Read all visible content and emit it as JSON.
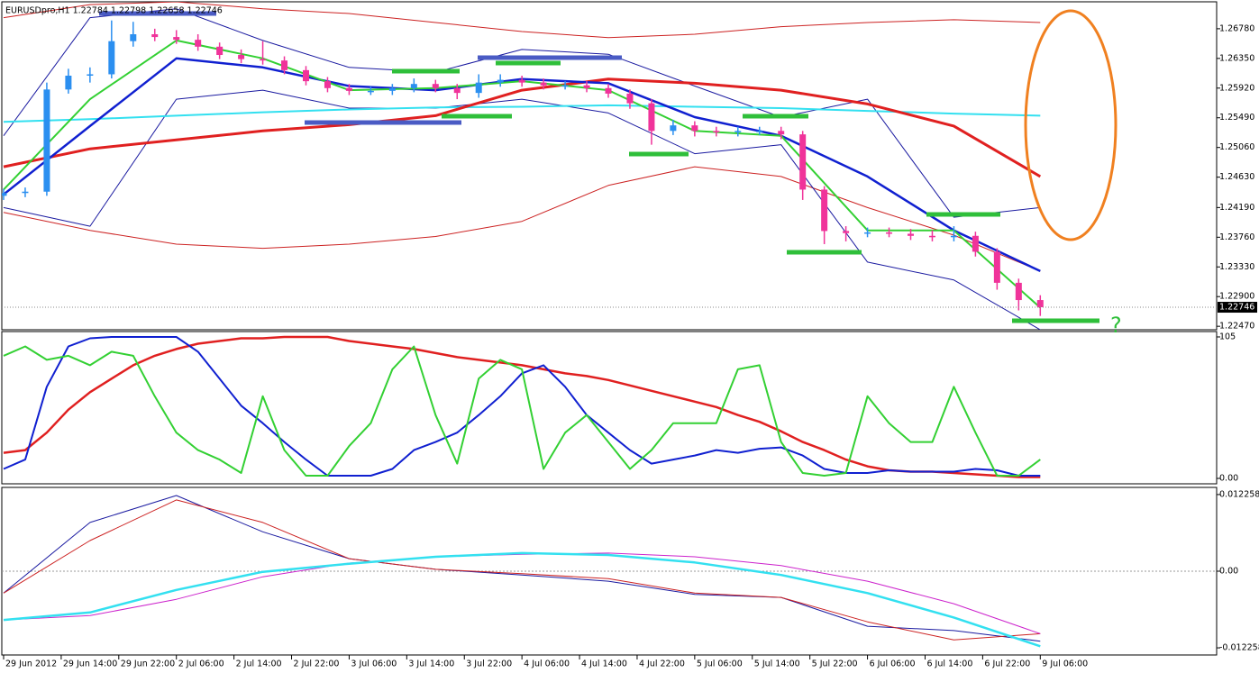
{
  "chart_data": [
    {
      "type": "candlestick",
      "title": "EURUSDpro,H1  1.22784 1.22798 1.22658 1.22746",
      "x": [
        0,
        3,
        6,
        9,
        12,
        15,
        18,
        21,
        24,
        27,
        30,
        33,
        36,
        39,
        42,
        45,
        48,
        51,
        54,
        57,
        60,
        63,
        66,
        69,
        72,
        75,
        78,
        81,
        84,
        87,
        90,
        93,
        96,
        99,
        102,
        105,
        108,
        111,
        114,
        117,
        120,
        123,
        126,
        129,
        132,
        135,
        138,
        141,
        144
      ],
      "open": [
        1.2436,
        1.244,
        1.2442,
        1.259,
        1.261,
        1.2612,
        1.266,
        1.267,
        1.2666,
        1.2662,
        1.2652,
        1.264,
        1.2634,
        1.2632,
        1.2618,
        1.2602,
        1.2592,
        1.2588,
        1.2588,
        1.2592,
        1.2598,
        1.2592,
        1.2585,
        1.26,
        1.2604,
        1.26,
        1.2596,
        1.2596,
        1.2592,
        1.2584,
        1.257,
        1.253,
        1.2538,
        1.253,
        1.2528,
        1.253,
        1.253,
        1.2525,
        1.2445,
        1.2385,
        1.2382,
        1.2383,
        1.2381,
        1.2378,
        1.2376,
        1.2378,
        1.2355,
        1.231,
        1.2285
      ],
      "high": [
        1.2446,
        1.2448,
        1.26,
        1.262,
        1.2622,
        1.269,
        1.2688,
        1.2678,
        1.2676,
        1.267,
        1.2658,
        1.2648,
        1.266,
        1.2638,
        1.2624,
        1.2608,
        1.2598,
        1.2594,
        1.2598,
        1.2606,
        1.2604,
        1.2598,
        1.2612,
        1.2612,
        1.261,
        1.2606,
        1.2602,
        1.2602,
        1.2598,
        1.259,
        1.2576,
        1.2546,
        1.2544,
        1.2536,
        1.2536,
        1.2536,
        1.2536,
        1.253,
        1.245,
        1.2392,
        1.239,
        1.239,
        1.2388,
        1.2386,
        1.2392,
        1.2384,
        1.236,
        1.2316,
        1.2292
      ],
      "low": [
        1.243,
        1.2434,
        1.2436,
        1.2584,
        1.26,
        1.2606,
        1.2652,
        1.266,
        1.2656,
        1.2646,
        1.2634,
        1.2628,
        1.2626,
        1.2612,
        1.2596,
        1.2586,
        1.2582,
        1.2582,
        1.2582,
        1.2586,
        1.2586,
        1.2576,
        1.2578,
        1.2594,
        1.2594,
        1.259,
        1.259,
        1.2586,
        1.2578,
        1.2562,
        1.251,
        1.2524,
        1.2522,
        1.2522,
        1.2522,
        1.2524,
        1.2518,
        1.243,
        1.2366,
        1.237,
        1.2376,
        1.2376,
        1.2372,
        1.237,
        1.237,
        1.2348,
        1.23,
        1.227,
        1.2262
      ],
      "close": [
        1.244,
        1.2442,
        1.259,
        1.261,
        1.2612,
        1.266,
        1.267,
        1.2666,
        1.2662,
        1.2652,
        1.264,
        1.2634,
        1.2632,
        1.2618,
        1.2602,
        1.2592,
        1.2588,
        1.2588,
        1.2592,
        1.2598,
        1.2592,
        1.2585,
        1.26,
        1.2604,
        1.26,
        1.2596,
        1.2596,
        1.2592,
        1.2584,
        1.257,
        1.253,
        1.2538,
        1.253,
        1.2528,
        1.253,
        1.253,
        1.2525,
        1.2445,
        1.2385,
        1.2382,
        1.2383,
        1.2381,
        1.2378,
        1.2376,
        1.2378,
        1.2355,
        1.231,
        1.2285,
        1.22746
      ],
      "up_color": "#2b8ff0",
      "down_color": "#f0339a",
      "lines": {
        "x": [
          0,
          12,
          24,
          36,
          48,
          60,
          72,
          84,
          96,
          108,
          120,
          132,
          144
        ],
        "series": [
          {
            "color": "#cc2222",
            "width": 1,
            "values": [
              1.2694,
              1.2713,
              1.2717,
              1.2707,
              1.27,
              1.2687,
              1.2674,
              1.2665,
              1.267,
              1.2681,
              1.2687,
              1.2691,
              1.2687
            ]
          },
          {
            "color": "#cc2222",
            "width": 1,
            "values": [
              1.2412,
              1.2386,
              1.2366,
              1.236,
              1.2366,
              1.2377,
              1.2399,
              1.2451,
              1.2478,
              1.2464,
              1.2419,
              1.2379,
              1.2327
            ]
          },
          {
            "color": "#1a1aa0",
            "width": 1,
            "values": [
              1.2523,
              1.2694,
              1.2707,
              1.2661,
              1.2622,
              1.2615,
              1.2648,
              1.2641,
              1.2595,
              1.255,
              1.2576,
              1.2405,
              1.2419
            ]
          },
          {
            "color": "#1a1aa0",
            "width": 1,
            "values": [
              1.2419,
              1.2392,
              1.2576,
              1.2589,
              1.2563,
              1.2563,
              1.2576,
              1.2556,
              1.2497,
              1.251,
              1.234,
              1.2314,
              1.2242
            ]
          },
          {
            "color": "#33e0f0",
            "width": 2,
            "values": [
              1.2543,
              1.2547,
              1.2552,
              1.2557,
              1.2561,
              1.2564,
              1.2565,
              1.2567,
              1.2565,
              1.2563,
              1.2559,
              1.2555,
              1.2552
            ]
          },
          {
            "color": "#e02020",
            "width": 3,
            "values": [
              1.2478,
              1.2504,
              1.2517,
              1.253,
              1.2539,
              1.2552,
              1.2589,
              1.2605,
              1.2599,
              1.2589,
              1.2569,
              1.2537,
              1.2464
            ]
          },
          {
            "color": "#1020d0",
            "width": 2.5,
            "values": [
              1.2438,
              1.2537,
              1.2635,
              1.2622,
              1.2595,
              1.2589,
              1.2605,
              1.2599,
              1.255,
              1.2523,
              1.2464,
              1.2386,
              1.2327
            ]
          },
          {
            "color": "#33d033",
            "width": 2,
            "values": [
              1.2445,
              1.2576,
              1.2661,
              1.2635,
              1.2589,
              1.2592,
              1.2602,
              1.2589,
              1.253,
              1.2523,
              1.2386,
              1.2386,
              1.2274
            ]
          }
        ]
      },
      "xlim": [
        -0.25,
        168.5
      ],
      "ylim": [
        1.2242,
        1.2717
      ],
      "yticks": [
        {
          "value": 1.2678,
          "label": "1.26780"
        },
        {
          "value": 1.2635,
          "label": "1.26350"
        },
        {
          "value": 1.2592,
          "label": "1.25920"
        },
        {
          "value": 1.2549,
          "label": "1.25490"
        },
        {
          "value": 1.2506,
          "label": "1.25060"
        },
        {
          "value": 1.2463,
          "label": "1.24630"
        },
        {
          "value": 1.2419,
          "label": "1.24190"
        },
        {
          "value": 1.2376,
          "label": "1.23760"
        },
        {
          "value": 1.2333,
          "label": "1.23330"
        },
        {
          "value": 1.229,
          "label": "1.22900"
        },
        {
          "value": 1.2247,
          "label": "1.22470"
        }
      ],
      "xticks": [
        {
          "value": 0,
          "label": "29 Jun 2012"
        },
        {
          "value": 8,
          "label": "29 Jun 14:00"
        },
        {
          "value": 16,
          "label": "29 Jun 22:00"
        },
        {
          "value": 24,
          "label": "2 Jul 06:00"
        },
        {
          "value": 32,
          "label": "2 Jul 14:00"
        },
        {
          "value": 40,
          "label": "2 Jul 22:00"
        },
        {
          "value": 48,
          "label": "3 Jul 06:00"
        },
        {
          "value": 56,
          "label": "3 Jul 14:00"
        },
        {
          "value": 64,
          "label": "3 Jul 22:00"
        },
        {
          "value": 72,
          "label": "4 Jul 06:00"
        },
        {
          "value": 80,
          "label": "4 Jul 14:00"
        },
        {
          "value": 88,
          "label": "4 Jul 22:00"
        },
        {
          "value": 96,
          "label": "5 Jul 06:00"
        },
        {
          "value": 104,
          "label": "5 Jul 14:00"
        },
        {
          "value": 112,
          "label": "5 Jul 22:00"
        },
        {
          "value": 120,
          "label": "6 Jul 06:00"
        },
        {
          "value": 128,
          "label": "6 Jul 14:00"
        },
        {
          "value": 136,
          "label": "6 Jul 22:00"
        },
        {
          "value": 144,
          "label": "9 Jul 06:00"
        }
      ],
      "last_price": {
        "value": 1.22746,
        "label": "1.22746"
      },
      "annotations": [
        "?"
      ]
    },
    {
      "type": "line",
      "x": [
        0,
        3,
        6,
        9,
        12,
        15,
        18,
        21,
        24,
        27,
        30,
        33,
        36,
        39,
        42,
        45,
        48,
        51,
        54,
        57,
        60,
        63,
        66,
        69,
        72,
        75,
        78,
        81,
        84,
        87,
        90,
        93,
        96,
        99,
        102,
        105,
        108,
        111,
        114,
        117,
        120,
        123,
        126,
        129,
        132,
        135,
        138,
        141,
        144
      ],
      "ylim": [
        -4,
        109
      ],
      "yticks": [
        105,
        {
          "value": 0,
          "label": "0.00"
        }
      ],
      "series": [
        {
          "color": "#e02020",
          "width": 2.5,
          "values": [
            19,
            21,
            34,
            51,
            64,
            74,
            84,
            91,
            96,
            100,
            102,
            104,
            104,
            105,
            105,
            105,
            102,
            100,
            98,
            96,
            93,
            90,
            88,
            86,
            84,
            81,
            78,
            76,
            73,
            69,
            65,
            61,
            57,
            53,
            47,
            42,
            35,
            27,
            21,
            14,
            9,
            6,
            5,
            5,
            4,
            3,
            2,
            1,
            1
          ]
        },
        {
          "color": "#1020d0",
          "width": 2,
          "values": [
            7,
            14,
            68,
            98,
            104,
            105,
            105,
            105,
            105,
            94,
            74,
            54,
            41,
            27,
            14,
            2,
            2,
            2,
            7,
            21,
            27,
            34,
            47,
            61,
            78,
            84,
            68,
            47,
            34,
            21,
            11,
            14,
            17,
            21,
            19,
            22,
            23,
            17,
            7,
            4,
            4,
            6,
            5,
            5,
            5,
            7,
            6,
            2,
            2
          ]
        },
        {
          "color": "#33d033",
          "width": 2,
          "values": [
            91,
            98,
            88,
            91,
            84,
            94,
            91,
            61,
            34,
            21,
            14,
            4,
            61,
            21,
            2,
            2,
            24,
            41,
            81,
            98,
            47,
            11,
            74,
            88,
            81,
            7,
            34,
            47,
            27,
            7,
            21,
            41,
            41,
            41,
            81,
            84,
            27,
            4,
            2,
            4,
            61,
            41,
            27,
            27,
            68,
            34,
            2,
            2,
            14
          ]
        }
      ]
    },
    {
      "type": "line",
      "x": [
        0,
        12,
        24,
        36,
        48,
        60,
        72,
        84,
        96,
        108,
        120,
        132,
        144
      ],
      "ylim": [
        -0.0134,
        0.0134
      ],
      "yticks": [
        0.012258,
        {
          "value": 0,
          "label": "0.00"
        },
        -0.012258
      ],
      "zero_line": true,
      "series": [
        {
          "color": "#e8e8e8",
          "width": 0,
          "values": [
            null,
            null,
            null,
            null,
            null,
            null,
            null,
            null,
            null,
            null,
            null,
            null,
            null
          ]
        },
        {
          "color": "#1a1aa0",
          "width": 1,
          "values": [
            -0.0035,
            0.0078,
            0.0121,
            0.0063,
            0.002,
            0.0003,
            -0.0006,
            -0.0016,
            -0.0037,
            -0.0042,
            -0.0088,
            -0.0095,
            -0.0112
          ]
        },
        {
          "color": "#cc2222",
          "width": 1,
          "values": [
            -0.0035,
            0.0049,
            0.0114,
            0.0078,
            0.002,
            0.0003,
            -0.0004,
            -0.0012,
            -0.0035,
            -0.0042,
            -0.0081,
            -0.011,
            -0.01
          ]
        },
        {
          "color": "#cc22cc",
          "width": 1,
          "values": [
            -0.0078,
            -0.0071,
            -0.0045,
            -0.0009,
            0.0013,
            0.0023,
            0.0027,
            0.0029,
            0.0023,
            0.0009,
            -0.0016,
            -0.0052,
            -0.01
          ]
        },
        {
          "color": "#33e0f0",
          "width": 2.5,
          "values": [
            -0.0078,
            -0.0066,
            -0.003,
            -0.0001,
            0.0012,
            0.0023,
            0.0029,
            0.0026,
            0.0014,
            -0.0006,
            -0.0035,
            -0.0074,
            -0.012
          ]
        }
      ]
    }
  ]
}
